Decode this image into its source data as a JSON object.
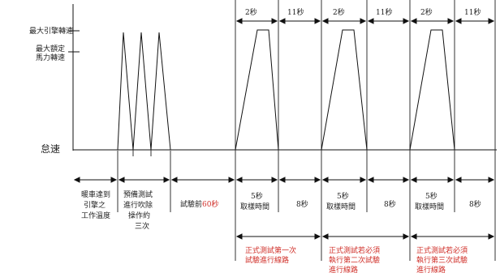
{
  "y_axis": {
    "max_engine_speed": "最大引擎轉速",
    "max_rated_speed": [
      "最大額定",
      "馬力轉速"
    ],
    "idle_speed": "怠速"
  },
  "top_durations": [
    "2秒",
    "11秒",
    "2秒",
    "11秒",
    "2秒",
    "11秒"
  ],
  "phases": [
    [
      "暖車達到",
      "引擎之",
      "工作溫度"
    ],
    [
      "預備測試",
      "進行吹除",
      "操作約",
      "三次"
    ],
    [
      "試驗前",
      "60秒"
    ]
  ],
  "cycle_labels": [
    {
      "hold": [
        "5秒",
        "取樣時間"
      ],
      "rest": "8秒"
    },
    {
      "hold": [
        "5秒",
        "取樣時間"
      ],
      "rest": "8秒"
    },
    {
      "hold": [
        "5秒",
        "取樣時間"
      ],
      "rest": "8秒"
    }
  ],
  "test_labels": [
    [
      "正式測試第一次",
      "試驗進行線路"
    ],
    [
      "正式測試若必須",
      "執行第二次試驗",
      "進行線路"
    ],
    [
      "正式測試若必須",
      "執行第三次試驗",
      "進行線路"
    ]
  ],
  "colors": {
    "accent": "#d0302a",
    "line": "#111111"
  }
}
